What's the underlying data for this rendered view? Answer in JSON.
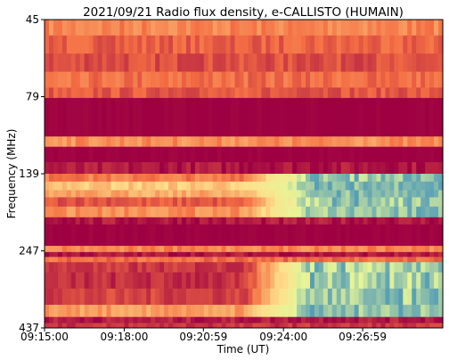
{
  "chart_data": {
    "type": "heatmap",
    "title": "2021/09/21  Radio flux density, e-CALLISTO (HUMAIN)",
    "xlabel": "Time (UT)",
    "ylabel": "Frequency (MHz)",
    "x_ticks": [
      "09:15:00",
      "09:18:00",
      "09:20:59",
      "09:24:00",
      "09:26:59"
    ],
    "x_tick_seconds": [
      0,
      180,
      359,
      540,
      719
    ],
    "x_range_seconds": [
      0,
      900
    ],
    "y_ticks": [
      45,
      79,
      139,
      247,
      437
    ],
    "y_axis": "frequency increases downward, ticks evenly spaced",
    "colormap": "Spectral (dark red low, yellow mid, blue high)",
    "colors": {
      "low": "#9e0142",
      "midlow": "#f46d43",
      "mid": "#fee08b",
      "midhigh": "#e6f598",
      "high": "#3288bd"
    },
    "bands": [
      {
        "from": 45,
        "to": 52,
        "level": 0.3
      },
      {
        "from": 52,
        "to": 60,
        "level": 0.22
      },
      {
        "from": 60,
        "to": 68,
        "level": 0.18
      },
      {
        "from": 68,
        "to": 75,
        "level": 0.25
      },
      {
        "from": 75,
        "to": 80,
        "level": 0.2
      },
      {
        "from": 80,
        "to": 110,
        "level": 0.0
      },
      {
        "from": 110,
        "to": 118,
        "level": 0.32
      },
      {
        "from": 118,
        "to": 130,
        "level": 0.0
      },
      {
        "from": 130,
        "to": 139,
        "level": 0.05
      },
      {
        "from": 139,
        "to": 150,
        "level": 0.28,
        "burst": true
      },
      {
        "from": 150,
        "to": 162,
        "level": 0.45,
        "burst": true
      },
      {
        "from": 162,
        "to": 172,
        "level": 0.38,
        "burst": true
      },
      {
        "from": 172,
        "to": 185,
        "level": 0.2,
        "burst": true
      },
      {
        "from": 185,
        "to": 200,
        "level": 0.32,
        "burst": true
      },
      {
        "from": 200,
        "to": 210,
        "level": 0.05
      },
      {
        "from": 210,
        "to": 240,
        "level": 0.0
      },
      {
        "from": 240,
        "to": 250,
        "level": 0.3
      },
      {
        "from": 250,
        "to": 262,
        "level": 0.05
      },
      {
        "from": 262,
        "to": 275,
        "level": 0.25
      },
      {
        "from": 275,
        "to": 300,
        "level": 0.12,
        "burst": true
      },
      {
        "from": 300,
        "to": 340,
        "level": 0.1,
        "burst": true
      },
      {
        "from": 340,
        "to": 380,
        "level": 0.15,
        "burst": true
      },
      {
        "from": 380,
        "to": 410,
        "level": 0.35,
        "burst": true
      },
      {
        "from": 410,
        "to": 425,
        "level": 0.06
      },
      {
        "from": 425,
        "to": 437,
        "level": 0.12
      }
    ],
    "burst_onset_seconds": 540,
    "burst_peak_level": 0.95
  }
}
